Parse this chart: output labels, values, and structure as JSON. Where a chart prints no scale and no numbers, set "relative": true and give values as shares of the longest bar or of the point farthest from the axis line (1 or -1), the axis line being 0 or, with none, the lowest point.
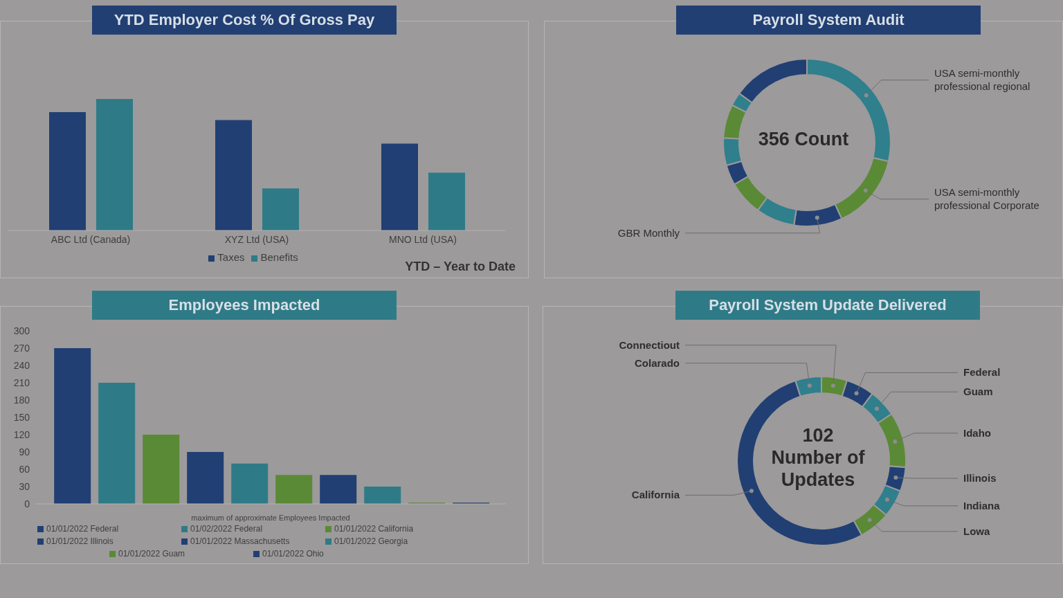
{
  "chart_data": [
    {
      "type": "bar",
      "title": "YTD Employer Cost % Of Gross Pay",
      "categories": [
        "ABC Ltd (Canada)",
        "XYZ Ltd (USA)",
        "MNO Ltd (USA)"
      ],
      "series": [
        {
          "name": "Taxes",
          "color": "#213f73",
          "values": [
            0.9,
            0.84,
            0.66
          ]
        },
        {
          "name": "Benefits",
          "color": "#2e7b87",
          "values": [
            1,
            0.32,
            0.44
          ]
        }
      ],
      "relative": true,
      "legend": "bottom",
      "annotations": [
        "YTD – Year to Date"
      ]
    },
    {
      "type": "donut",
      "title": "Payroll System Audit",
      "categories": [
        "USA semi-monthly professional regional",
        "USA semi-monthly professional Corporate",
        "GBR Monthly",
        null,
        null,
        null,
        null,
        null,
        null,
        null
      ],
      "values": [
        28.6,
        14.6,
        9.3,
        7.5,
        6.7,
        3.9,
        5.3,
        6.5,
        2.6,
        15.0
      ],
      "colors": [
        "#2f7f8d",
        "#5a8a35",
        "#213f73",
        "#2f7f8d",
        "#5a8a35",
        "#213f73",
        "#2f7f8d",
        "#5a8a35",
        "#2f7f8d",
        "#213f73"
      ],
      "annotations": [
        "356 Count"
      ]
    },
    {
      "type": "bar",
      "title": "Employees Impacted",
      "xlabel": "maximum of approximate Employees Impacted",
      "categories": [
        null
      ],
      "series": [
        {
          "name": "01/01/2022 Federal",
          "color": "#213f73",
          "values": [
            270
          ]
        },
        {
          "name": "01/02/2022 Federal",
          "color": "#2e7b87",
          "values": [
            210
          ]
        },
        {
          "name": "01/01/2022 California",
          "color": "#5a8a35",
          "values": [
            120
          ]
        },
        {
          "name": "01/01/2022 Illinois",
          "color": "#213f73",
          "values": [
            90
          ]
        },
        {
          "color": "#2e7b87",
          "values": [
            70
          ]
        },
        {
          "color": "#5a8a35",
          "values": [
            50
          ]
        },
        {
          "name": "01/01/2022 Massachusetts",
          "color": "#213f73",
          "values": [
            50
          ]
        },
        {
          "name": "01/01/2022 Georgia",
          "color": "#2e7b87",
          "values": [
            30
          ]
        },
        {
          "name": "01/01/2022 Guam",
          "color": "#5a8a35",
          "values": [
            2
          ]
        },
        {
          "name": "01/01/2022 Ohio",
          "color": "#213f73",
          "values": [
            2
          ]
        }
      ],
      "ylim": [
        0,
        300
      ],
      "yticks": [
        0,
        30,
        60,
        90,
        120,
        150,
        180,
        210,
        240,
        270,
        300
      ],
      "legend": "bottom"
    },
    {
      "type": "donut",
      "title": "Payroll System Update Delivered",
      "categories": [
        "Connectiout",
        "Federal",
        "Guam",
        "Idaho",
        "Illinois",
        "Indiana",
        "Lowa",
        "California",
        "Colarado"
      ],
      "values": [
        4.9,
        5.4,
        5.3,
        10.6,
        4.6,
        5.3,
        6.0,
        52.9,
        5.0
      ],
      "colors": [
        "#5a8a35",
        "#213f73",
        "#2f7f8d",
        "#5a8a35",
        "#213f73",
        "#2f7f8d",
        "#5a8a35",
        "#213f73",
        "#2f7f8d"
      ],
      "annotations": [
        "102 Number of Updates"
      ]
    }
  ]
}
